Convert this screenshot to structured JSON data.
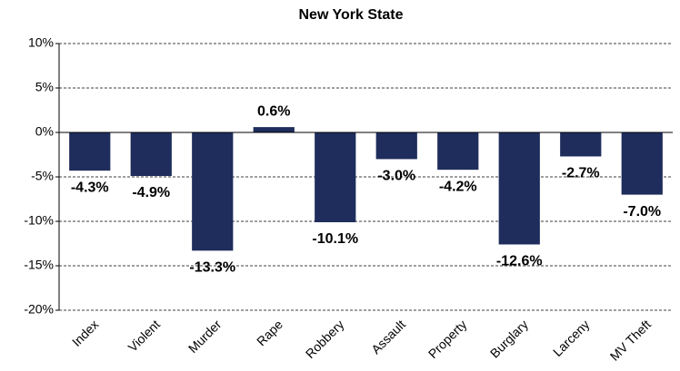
{
  "chart_data": {
    "type": "bar",
    "title": "New York State",
    "categories": [
      "Index",
      "Violent",
      "Murder",
      "Rape",
      "Robbery",
      "Assault",
      "Property",
      "Burglary",
      "Larceny",
      "MV Theft"
    ],
    "values": [
      -4.3,
      -4.9,
      -13.3,
      0.6,
      -10.1,
      -3.0,
      -4.2,
      -12.6,
      -2.7,
      -7.0
    ],
    "value_labels": [
      "-4.3%",
      "-4.9%",
      "-13.3%",
      "0.6%",
      "-10.1%",
      "-3.0%",
      "-4.2%",
      "-12.6%",
      "-2.7%",
      "-7.0%"
    ],
    "color": "#1f2d5c",
    "ylim": [
      -20,
      10
    ],
    "yticks": [
      {
        "value": -20,
        "label": "-20%"
      },
      {
        "value": -15,
        "label": "-15%"
      },
      {
        "value": -10,
        "label": "-10%"
      },
      {
        "value": -5,
        "label": "-5%"
      },
      {
        "value": 0,
        "label": "0%"
      },
      {
        "value": 5,
        "label": "5%"
      },
      {
        "value": 10,
        "label": "10%"
      }
    ],
    "grid": true
  }
}
